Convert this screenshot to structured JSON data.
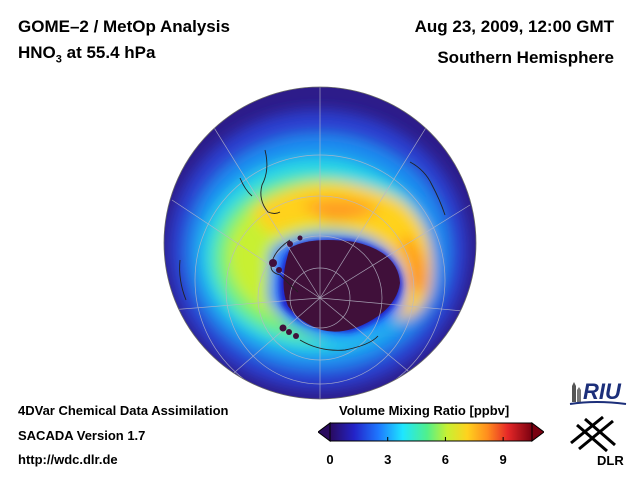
{
  "header": {
    "title": "GOME–2 / MetOp Analysis",
    "species_base": "HNO",
    "species_sub": "3",
    "species_rest": " at 55.4 hPa",
    "datetime": "Aug 23, 2009, 12:00 GMT",
    "hemisphere": "Southern Hemisphere"
  },
  "footer": {
    "line1": "4DVar Chemical Data Assimilation",
    "line2": "SACADA Version 1.7",
    "line3": "http://wdc.dlr.de"
  },
  "colorbar": {
    "title": "Volume Mixing Ratio [ppbv]",
    "min": 0,
    "max": 10.5,
    "ticks": [
      "0",
      "3",
      "6",
      "9"
    ],
    "tick_values": [
      0,
      3,
      6,
      9
    ],
    "colors": [
      "#2a0a5e",
      "#2323c8",
      "#1e78ff",
      "#1ee6ff",
      "#50f08c",
      "#c8f032",
      "#ffd21e",
      "#ff8c1e",
      "#e62828",
      "#7a0010"
    ]
  },
  "map": {
    "projection": "orthographic-south-polar",
    "field": "HNO3 volume mixing ratio",
    "core_color": "#40103a",
    "ocean_edge_color": "#3a1e8c"
  },
  "logos": {
    "riu": "RIU",
    "dlr": "DLR"
  }
}
